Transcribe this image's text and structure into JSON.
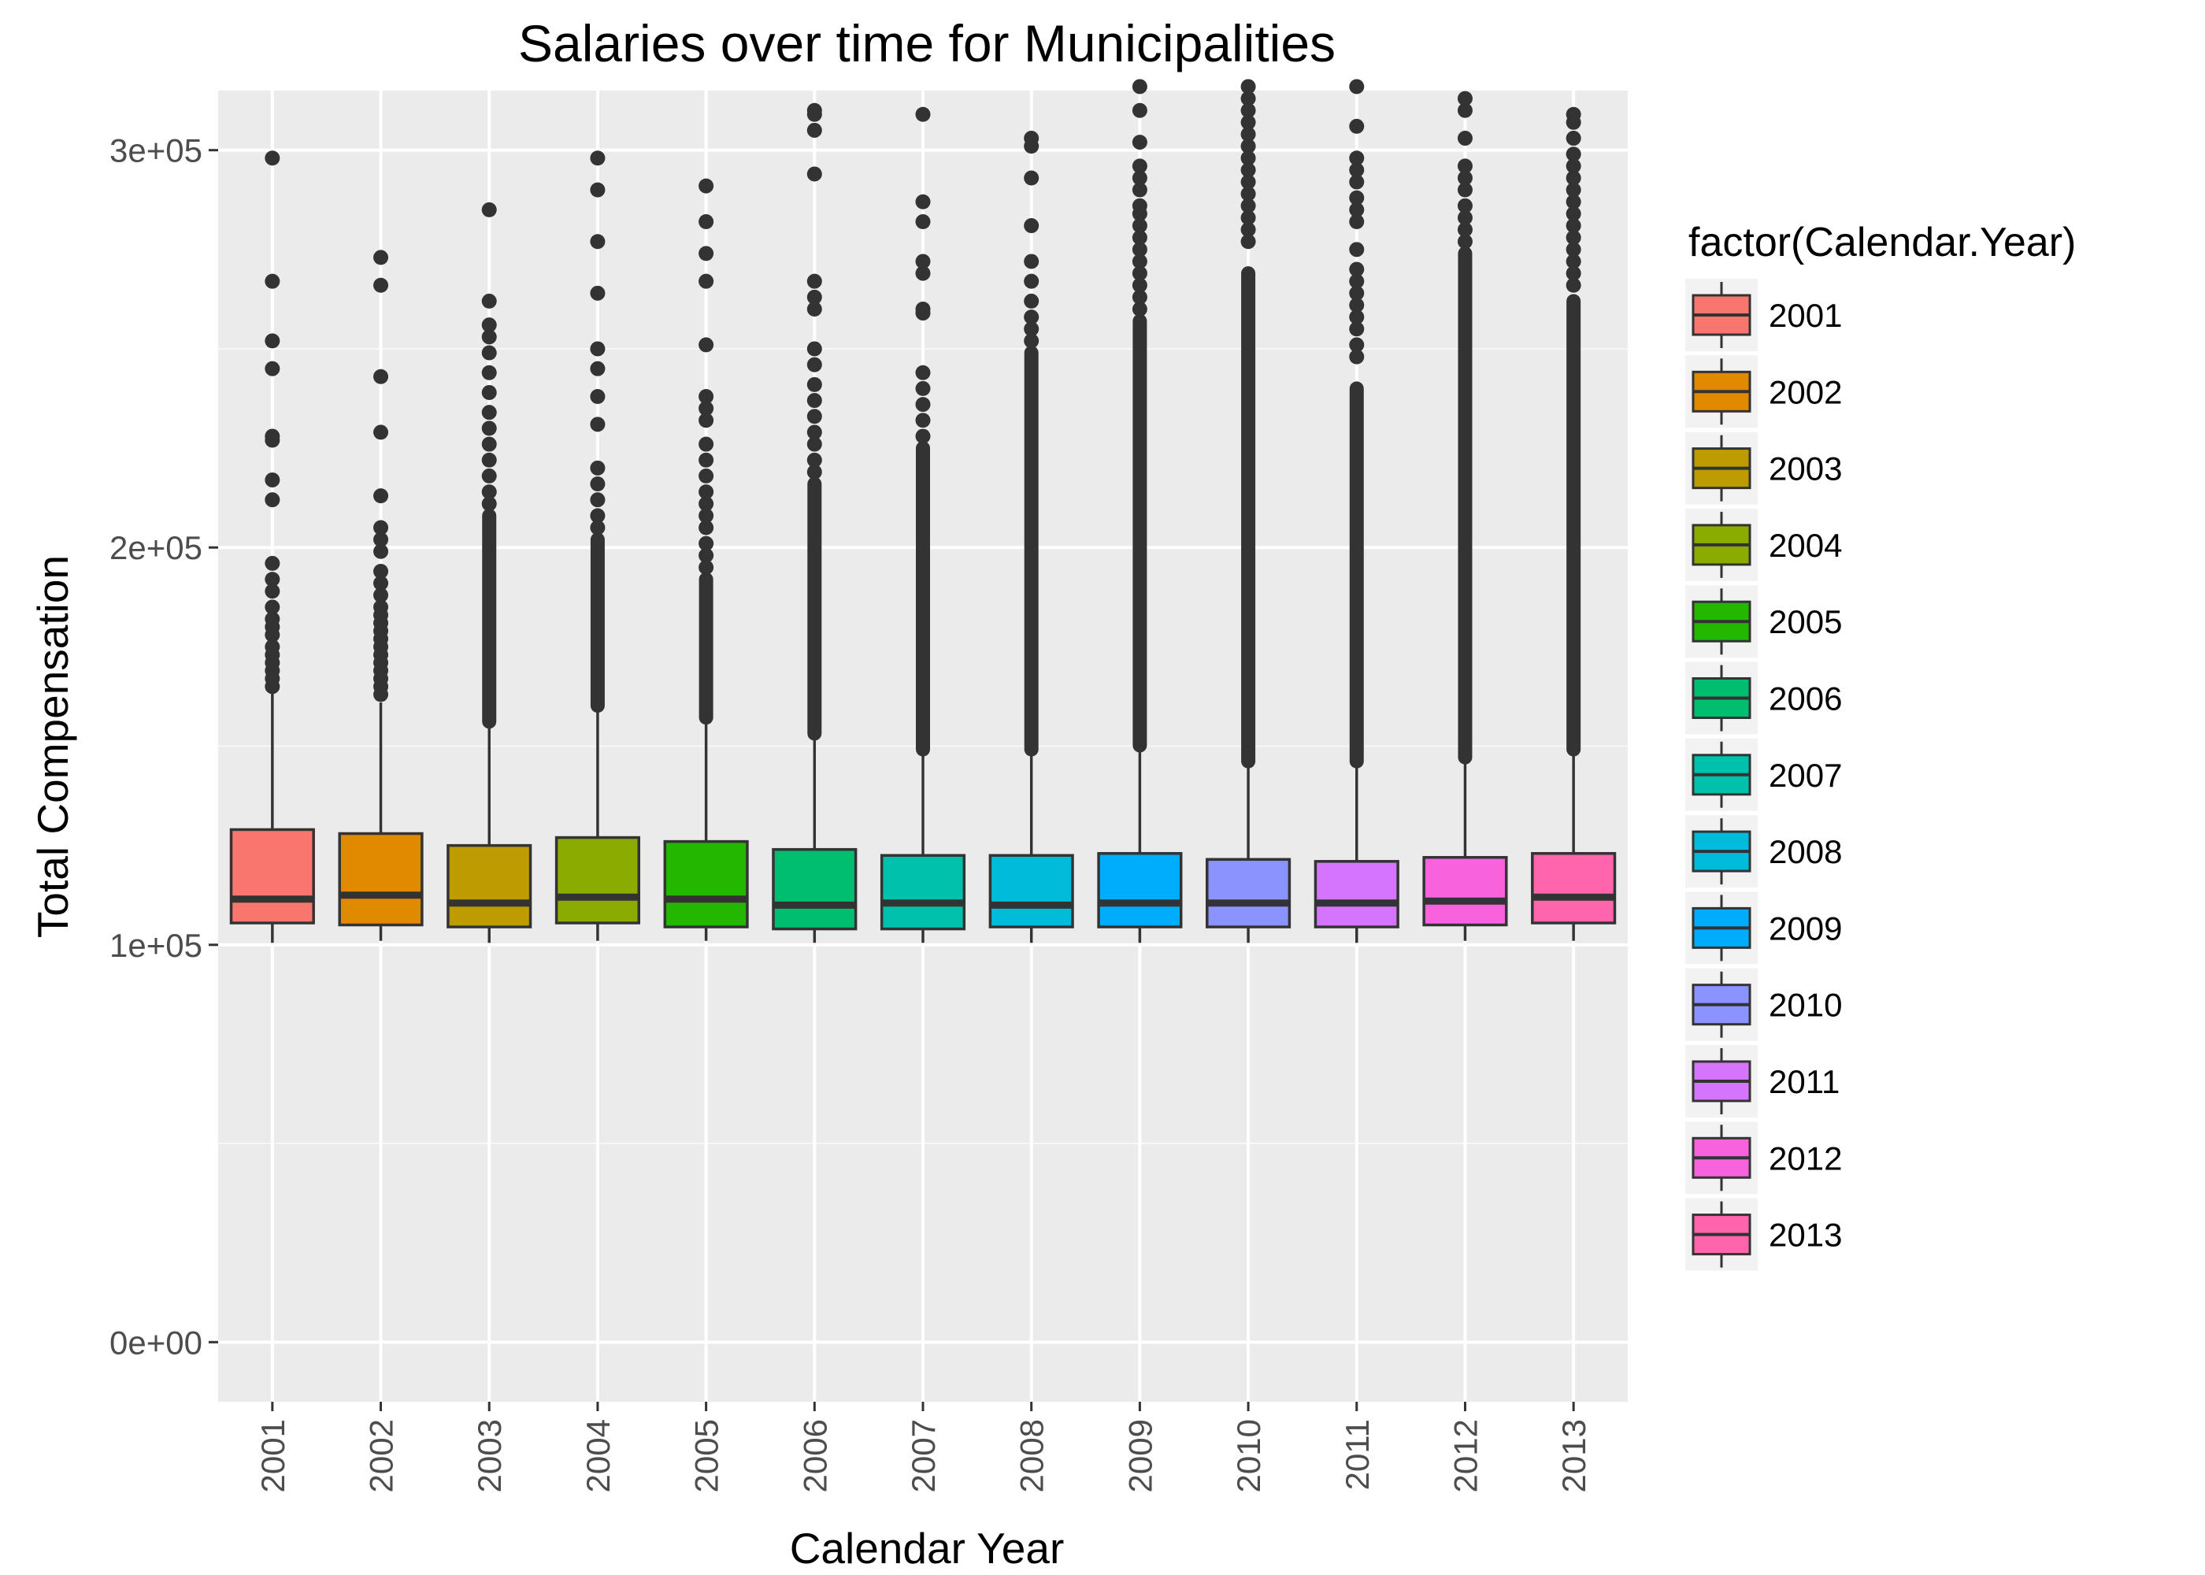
{
  "chart_data": {
    "type": "box",
    "title": "Salaries over time for Municipalities",
    "xlabel": "Calendar Year",
    "ylabel": "Total Compensation",
    "ylim": [
      -15000,
      315000
    ],
    "yticks": [
      {
        "value": 0,
        "label": "0e+00"
      },
      {
        "value": 100000,
        "label": "1e+05"
      },
      {
        "value": 200000,
        "label": "2e+05"
      },
      {
        "value": 300000,
        "label": "3e+05"
      }
    ],
    "grid": true,
    "legend": {
      "title": "factor(Calendar.Year)",
      "position": "right"
    },
    "categories": [
      "2001",
      "2002",
      "2003",
      "2004",
      "2005",
      "2006",
      "2007",
      "2008",
      "2009",
      "2010",
      "2011",
      "2012",
      "2013"
    ],
    "colors": [
      "#F8766D",
      "#E18A00",
      "#BE9C00",
      "#8CAB00",
      "#24B700",
      "#00BE70",
      "#00C1AB",
      "#00BBDA",
      "#00ACFC",
      "#8B93FF",
      "#D575FE",
      "#F962DD",
      "#FF65AC"
    ],
    "boxes": [
      {
        "year": "2001",
        "min": 100500,
        "q1": 105500,
        "median": 111500,
        "q3": 129000,
        "whisker_high": 164000,
        "outliers": [
          298000,
          267000,
          252000,
          245000,
          228000,
          227000,
          217000,
          212000,
          196000,
          192000,
          189000,
          185000,
          182000,
          180000,
          178000,
          175000,
          173000,
          171000,
          169000,
          167000,
          165000
        ],
        "dense_outlier_top": null
      },
      {
        "year": "2002",
        "min": 101000,
        "q1": 105000,
        "median": 112500,
        "q3": 128000,
        "whisker_high": 161000,
        "outliers": [
          273000,
          266000,
          243000,
          229000,
          213000,
          205000,
          202000,
          199000,
          194000,
          191000,
          188000,
          185000,
          183000,
          181000,
          179000,
          177000,
          175000,
          173000,
          171000,
          169000,
          167000,
          165000,
          163000
        ],
        "dense_outlier_top": null
      },
      {
        "year": "2003",
        "min": 100500,
        "q1": 104500,
        "median": 110500,
        "q3": 125000,
        "whisker_high": 155000,
        "outliers": [
          285000,
          262000,
          256000,
          253000,
          249000,
          244000,
          239000,
          234000,
          230000,
          226000,
          222000,
          218000,
          214000,
          211000
        ],
        "dense_outlier_top": 208000
      },
      {
        "year": "2004",
        "min": 101000,
        "q1": 105500,
        "median": 112000,
        "q3": 127000,
        "whisker_high": 159000,
        "outliers": [
          298000,
          290000,
          277000,
          264000,
          250000,
          245000,
          238000,
          231000,
          220000,
          216000,
          212000,
          208000,
          205000
        ],
        "dense_outlier_top": 202000
      },
      {
        "year": "2005",
        "min": 101000,
        "q1": 104500,
        "median": 111500,
        "q3": 126000,
        "whisker_high": 156000,
        "outliers": [
          291000,
          282000,
          274000,
          267000,
          251000,
          238000,
          235000,
          232000,
          226000,
          222000,
          218000,
          214000,
          211000,
          208000,
          205000,
          201000,
          198000,
          195000
        ],
        "dense_outlier_top": 192000
      },
      {
        "year": "2006",
        "min": 100500,
        "q1": 104000,
        "median": 110000,
        "q3": 124000,
        "whisker_high": 152000,
        "outliers": [
          310000,
          309000,
          305000,
          294000,
          267000,
          263000,
          260000,
          250000,
          246000,
          241000,
          237000,
          233000,
          229000,
          226000,
          222000,
          219000
        ],
        "dense_outlier_top": 216000
      },
      {
        "year": "2007",
        "min": 100500,
        "q1": 104000,
        "median": 110500,
        "q3": 122500,
        "whisker_high": 148000,
        "outliers": [
          309000,
          287000,
          282000,
          272000,
          269000,
          260000,
          259000,
          244000,
          240000,
          236000,
          232000,
          228000
        ],
        "dense_outlier_top": 225000
      },
      {
        "year": "2008",
        "min": 100500,
        "q1": 104500,
        "median": 110000,
        "q3": 122500,
        "whisker_high": 148000,
        "outliers": [
          303000,
          301000,
          293000,
          281000,
          272000,
          267000,
          262000,
          258000,
          255000,
          252000
        ],
        "dense_outlier_top": 249000
      },
      {
        "year": "2009",
        "min": 100500,
        "q1": 104500,
        "median": 110500,
        "q3": 123000,
        "whisker_high": 149000,
        "outliers": [
          316000,
          310000,
          302000,
          296000,
          293000,
          290000,
          286000,
          284000,
          281000,
          278000,
          275000,
          272000,
          269000,
          266000,
          263000,
          260000
        ],
        "dense_outlier_top": 257000
      },
      {
        "year": "2010",
        "min": 100500,
        "q1": 104500,
        "median": 110500,
        "q3": 121500,
        "whisker_high": 145000,
        "outliers": [
          316000,
          313000,
          310000,
          307000,
          304000,
          301000,
          298000,
          295000,
          292000,
          289000,
          286000,
          283000,
          280000,
          277000
        ],
        "dense_outlier_top": 269000
      },
      {
        "year": "2011",
        "min": 100500,
        "q1": 104500,
        "median": 110500,
        "q3": 121000,
        "whisker_high": 145000,
        "outliers": [
          316000,
          306000,
          298000,
          295000,
          292000,
          288000,
          285000,
          282000,
          275000,
          270000,
          267000,
          264000,
          261000,
          258000,
          255000,
          251000,
          248000
        ],
        "dense_outlier_top": 240000
      },
      {
        "year": "2012",
        "min": 101000,
        "q1": 105000,
        "median": 111000,
        "q3": 122000,
        "whisker_high": 146000,
        "outliers": [
          313000,
          310000,
          303000,
          296000,
          293000,
          290000,
          286000,
          283000,
          280000,
          277000
        ],
        "dense_outlier_top": 274000
      },
      {
        "year": "2013",
        "min": 101000,
        "q1": 105500,
        "median": 112000,
        "q3": 123000,
        "whisker_high": 148000,
        "outliers": [
          309000,
          307000,
          303000,
          299000,
          296000,
          293000,
          290000,
          287000,
          284000,
          281000,
          278000,
          275000,
          272000,
          269000,
          266000
        ],
        "dense_outlier_top": 262000
      }
    ]
  }
}
